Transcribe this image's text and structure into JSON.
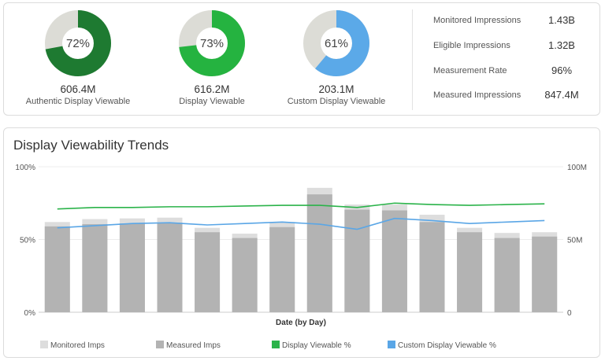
{
  "summary": {
    "donuts": [
      {
        "percent_label": "72%",
        "fraction": 0.72,
        "color": "#1e7a31",
        "value": "606.4M",
        "label": "Authentic Display Viewable"
      },
      {
        "percent_label": "73%",
        "fraction": 0.73,
        "color": "#25b340",
        "value": "616.2M",
        "label": "Display Viewable"
      },
      {
        "percent_label": "61%",
        "fraction": 0.61,
        "color": "#5ba9e8",
        "value": "203.1M",
        "label": "Custom Display Viewable"
      }
    ],
    "metrics": [
      {
        "label": "Monitored Impressions",
        "value": "1.43B"
      },
      {
        "label": "Eligible Impressions",
        "value": "1.32B"
      },
      {
        "label": "Measurement Rate",
        "value": "96%"
      },
      {
        "label": "Measured Impressions",
        "value": "847.4M"
      }
    ]
  },
  "trends": {
    "title": "Display Viewability Trends",
    "legend": [
      {
        "label": "Monitored Imps",
        "color": "#dddddd"
      },
      {
        "label": "Measured Imps",
        "color": "#b3b3b3"
      },
      {
        "label": "Display Viewable %",
        "color": "#2bb34a"
      },
      {
        "label": "Custom Display Viewable %",
        "color": "#5aa6e6"
      }
    ]
  },
  "chart_data": {
    "type": "bar",
    "xlabel": "Date (by Day)",
    "ylabel": "",
    "y_left": {
      "range": [
        0,
        100
      ],
      "ticks": [
        "0%",
        "50%",
        "100%"
      ]
    },
    "y_right": {
      "range": [
        0,
        100
      ],
      "ticks": [
        "0",
        "50M",
        "100M"
      ]
    },
    "grid": true,
    "legend_position": "bottom",
    "series": [
      {
        "name": "Monitored Imps",
        "kind": "bar",
        "axis": "right",
        "values": [
          62,
          64,
          64.5,
          65,
          58,
          54,
          62,
          85.5,
          74,
          74,
          67,
          58,
          54.5,
          55
        ]
      },
      {
        "name": "Measured Imps",
        "kind": "bar",
        "axis": "right",
        "values": [
          59,
          60.5,
          61,
          61.5,
          55,
          51,
          58.5,
          81,
          70.5,
          70,
          62,
          55,
          51,
          52
        ]
      },
      {
        "name": "Display Viewable %",
        "kind": "line",
        "axis": "left",
        "values": [
          71,
          72,
          72,
          72.5,
          72.5,
          73,
          73.5,
          73.5,
          72,
          75,
          74,
          73.5,
          74,
          74.5
        ]
      },
      {
        "name": "Custom Display Viewable %",
        "kind": "line",
        "axis": "left",
        "values": [
          58,
          59.5,
          61,
          61.5,
          60,
          61,
          62,
          60.5,
          57,
          64.5,
          63,
          61,
          62,
          63
        ]
      }
    ]
  }
}
